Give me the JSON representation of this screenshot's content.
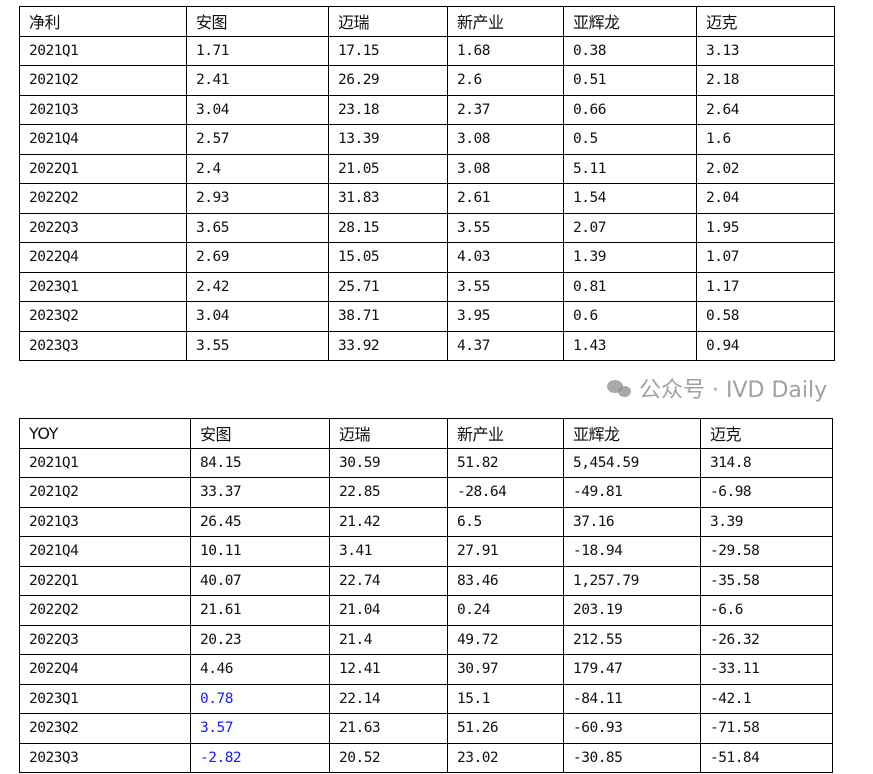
{
  "table1": {
    "headers": [
      "净利",
      "安图",
      "迈瑞",
      "新产业",
      "亚辉龙",
      "迈克"
    ],
    "rows": [
      [
        "2021Q1",
        "1.71",
        "17.15",
        "1.68",
        "0.38",
        "3.13"
      ],
      [
        "2021Q2",
        "2.41",
        "26.29",
        "2.6",
        "0.51",
        "2.18"
      ],
      [
        "2021Q3",
        "3.04",
        "23.18",
        "2.37",
        "0.66",
        "2.64"
      ],
      [
        "2021Q4",
        "2.57",
        "13.39",
        "3.08",
        "0.5",
        "1.6"
      ],
      [
        "2022Q1",
        "2.4",
        "21.05",
        "3.08",
        "5.11",
        "2.02"
      ],
      [
        "2022Q2",
        "2.93",
        "31.83",
        "2.61",
        "1.54",
        "2.04"
      ],
      [
        "2022Q3",
        "3.65",
        "28.15",
        "3.55",
        "2.07",
        "1.95"
      ],
      [
        "2022Q4",
        "2.69",
        "15.05",
        "4.03",
        "1.39",
        "1.07"
      ],
      [
        "2023Q1",
        "2.42",
        "25.71",
        "3.55",
        "0.81",
        "1.17"
      ],
      [
        "2023Q2",
        "3.04",
        "38.71",
        "3.95",
        "0.6",
        "0.58"
      ],
      [
        "2023Q3",
        "3.55",
        "33.92",
        "4.37",
        "1.43",
        "0.94"
      ]
    ]
  },
  "table2": {
    "headers": [
      "YOY",
      "安图",
      "迈瑞",
      "新产业",
      "亚辉龙",
      "迈克"
    ],
    "rows": [
      [
        "2021Q1",
        "84.15",
        "30.59",
        "51.82",
        "5,454.59",
        "314.8"
      ],
      [
        "2021Q2",
        "33.37",
        "22.85",
        "-28.64",
        "-49.81",
        "-6.98"
      ],
      [
        "2021Q3",
        "26.45",
        "21.42",
        "6.5",
        "37.16",
        "3.39"
      ],
      [
        "2021Q4",
        "10.11",
        "3.41",
        "27.91",
        "-18.94",
        "-29.58"
      ],
      [
        "2022Q1",
        "40.07",
        "22.74",
        "83.46",
        "1,257.79",
        "-35.58"
      ],
      [
        "2022Q2",
        "21.61",
        "21.04",
        "0.24",
        "203.19",
        "-6.6"
      ],
      [
        "2022Q3",
        "20.23",
        "21.4",
        "49.72",
        "212.55",
        "-26.32"
      ],
      [
        "2022Q4",
        "4.46",
        "12.41",
        "30.97",
        "179.47",
        "-33.11"
      ],
      [
        "2023Q1",
        "0.78",
        "22.14",
        "15.1",
        "-84.11",
        "-42.1"
      ],
      [
        "2023Q2",
        "3.57",
        "21.63",
        "51.26",
        "-60.93",
        "-71.58"
      ],
      [
        "2023Q3",
        "-2.82",
        "20.52",
        "23.02",
        "-30.85",
        "-51.84"
      ]
    ],
    "highlight_color": "#1a1aff",
    "highlighted_cells": [
      "2023Q1 安图",
      "2023Q2 安图",
      "2023Q3 安图"
    ]
  },
  "watermark": "公众号 · IVD Daily"
}
